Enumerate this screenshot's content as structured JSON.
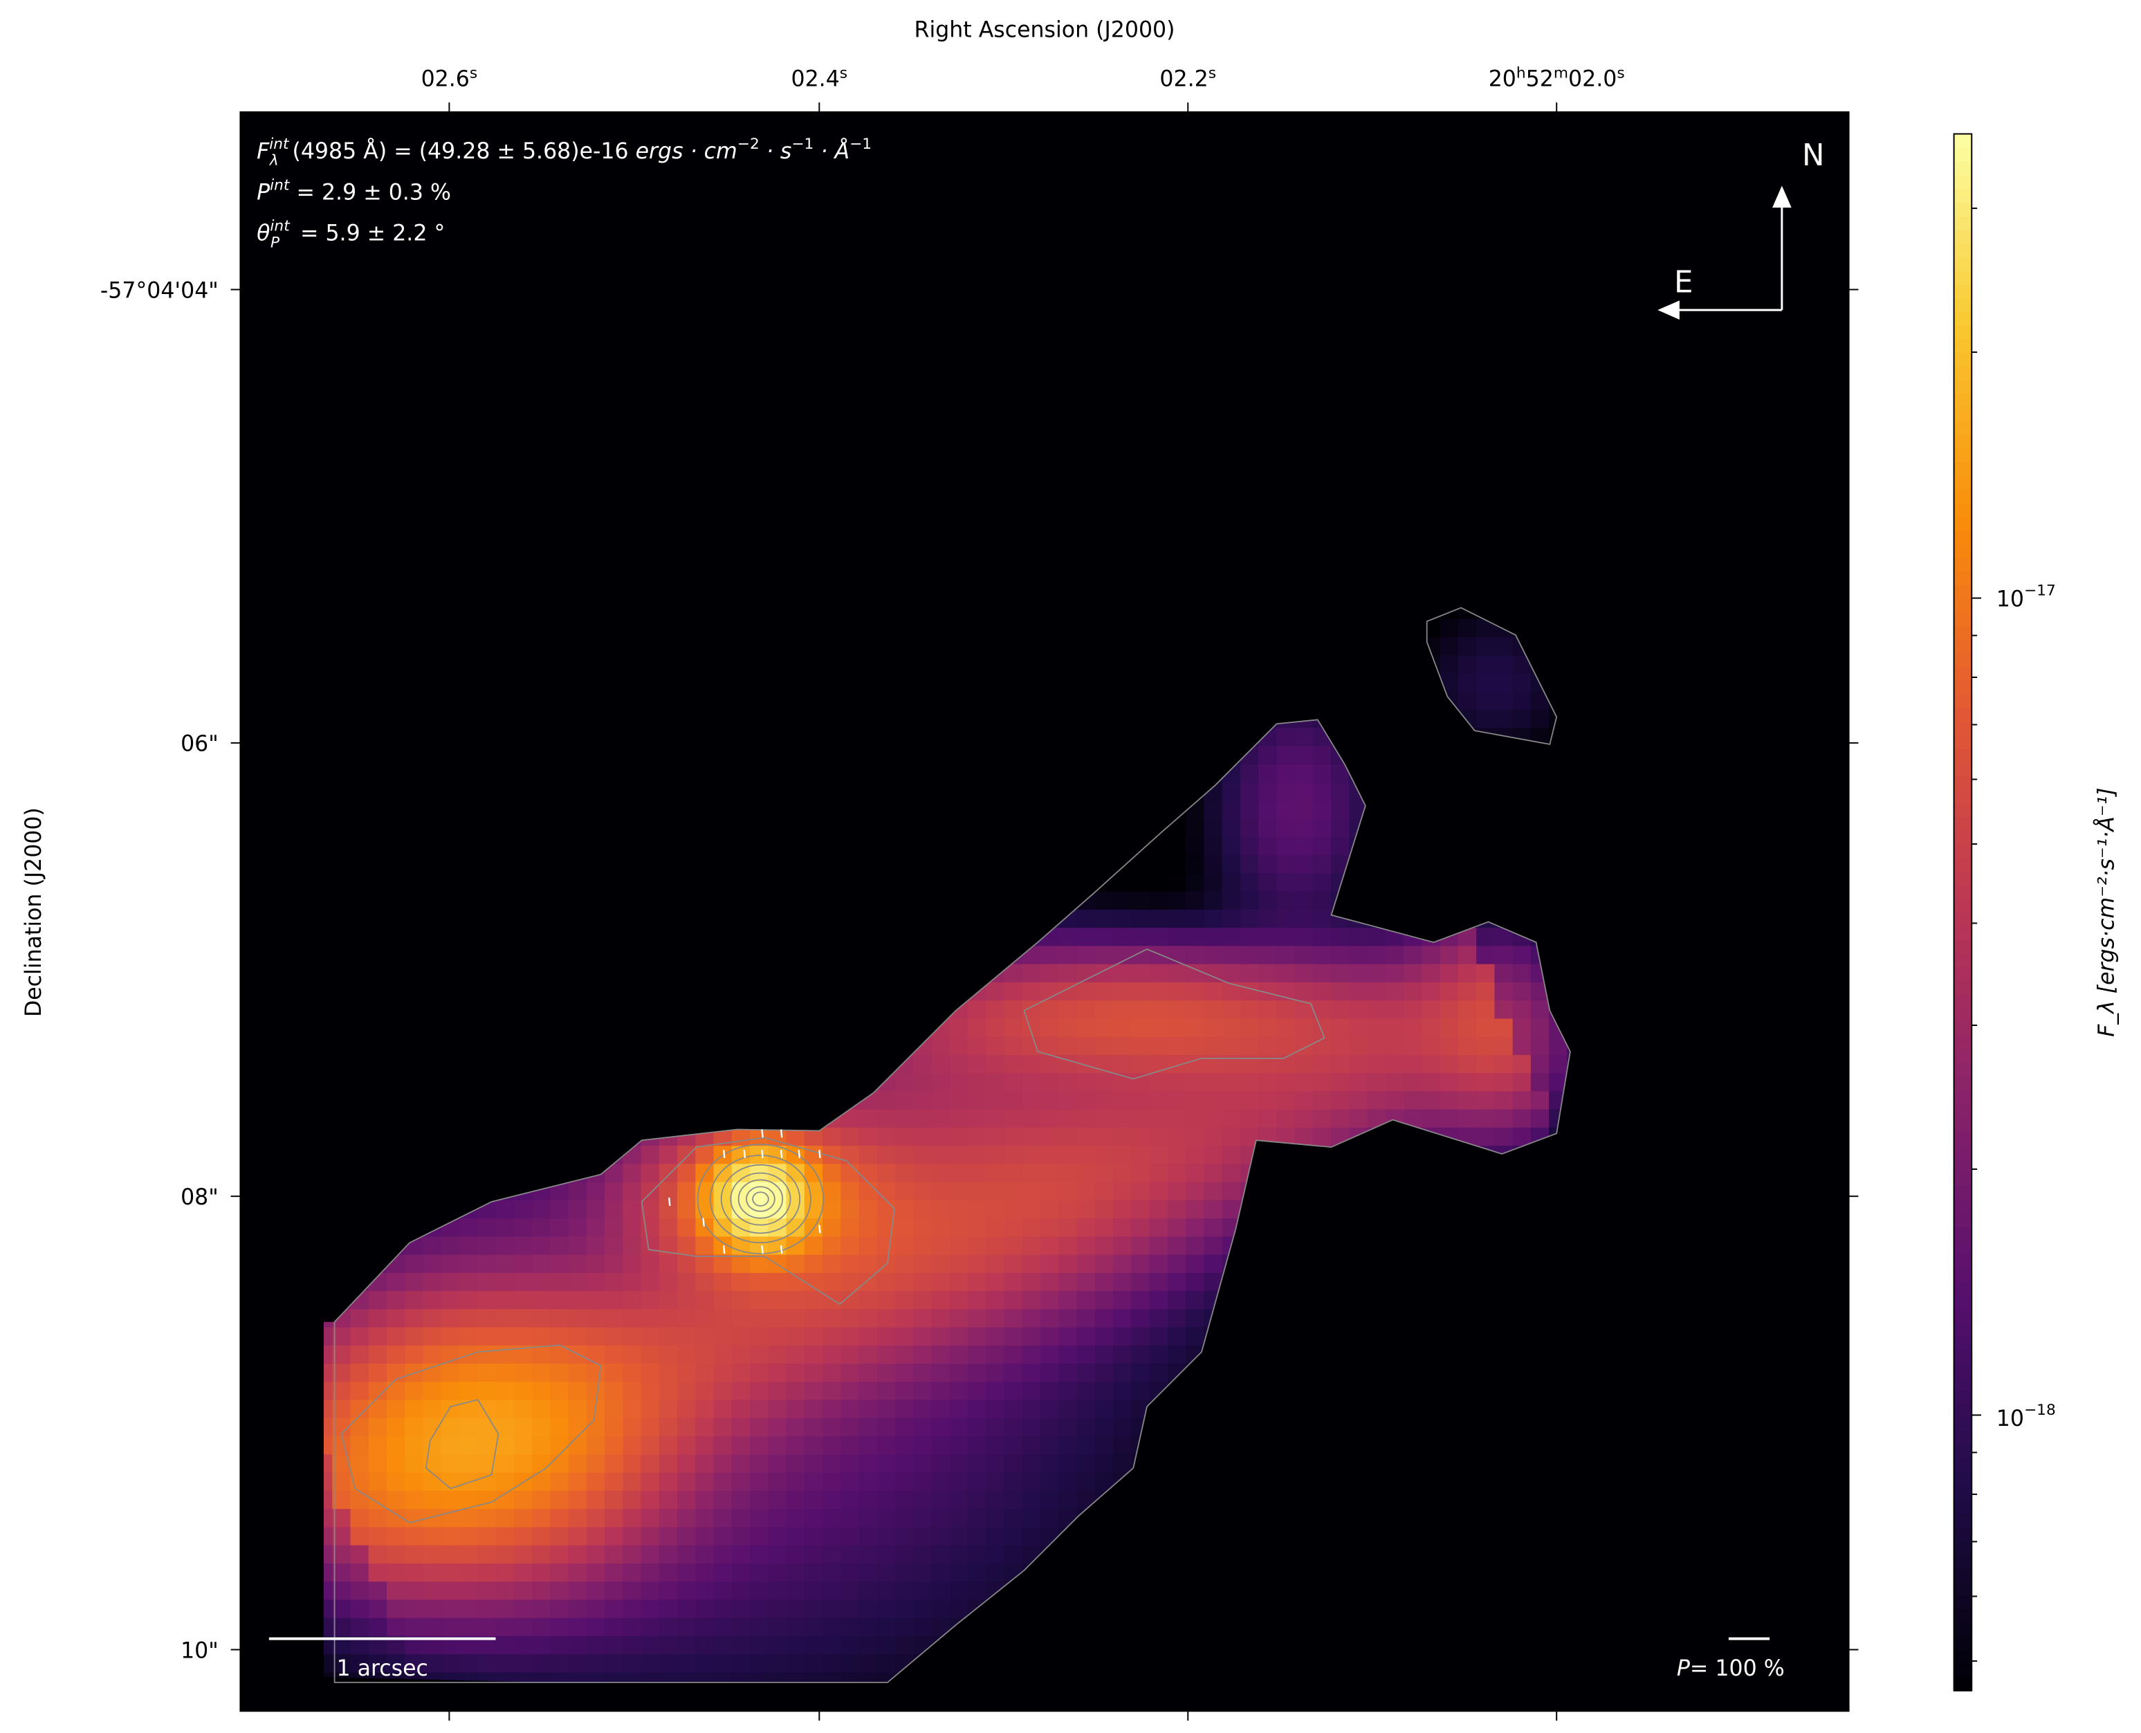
{
  "chart_data": {
    "type": "heatmap",
    "title": "",
    "xlabel": "Right Ascension (J2000)",
    "ylabel": "Declination (J2000)",
    "x_ticks": [
      {
        "main": "02.6",
        "sup": "s"
      },
      {
        "main": "02.4",
        "sup": "s"
      },
      {
        "main": "02.2",
        "sup": "s"
      },
      {
        "main": "20",
        "sup": "h",
        "main2": "52",
        "sup2": "m",
        "main3": "02.0",
        "sup3": "s"
      }
    ],
    "y_ticks": [
      "-57°04'04\"",
      "06\"",
      "08\"",
      "10\""
    ],
    "colormap": "inferno",
    "color_scale": "log",
    "colorbar": {
      "label": "F_λ [ergs·cm⁻²·s⁻¹·Å⁻¹]",
      "ticks": [
        {
          "base": "10",
          "exp": "−17",
          "value": 1e-17
        },
        {
          "base": "10",
          "exp": "−18",
          "value": 1e-18
        }
      ],
      "range": [
        4.6e-19,
        3.7e-17
      ]
    },
    "annotations": {
      "flux_line": {
        "sym": "F",
        "sup": "int",
        "sub": "λ",
        "text": "(4985 Å) = (49.28 ± 5.68)e-16 ",
        "unit": "ergs · cm",
        "u1": "−2",
        "u2": " · s",
        "u3": "−1",
        "u4": " · Å",
        "u5": "−1"
      },
      "pol_line": {
        "sym": "P",
        "sup": "int",
        "text": " = 2.9 ± 0.3 %"
      },
      "angle_line": {
        "sym": "θ",
        "sup": "int",
        "sub": "P",
        "text": " = 5.9 ± 2.2 °"
      },
      "north": "N",
      "east": "E",
      "scale_bar": "1 arcsec",
      "pol_scale": {
        "sym": "P",
        "text": "= 100 %"
      }
    },
    "contour_color": "#808080"
  }
}
